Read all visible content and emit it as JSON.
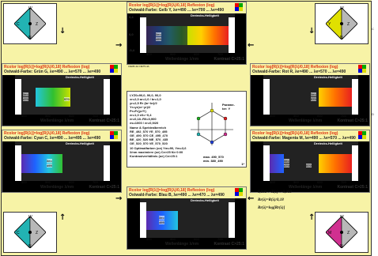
{
  "panels": {
    "top_center": {
      "title": "Rcolor log[R(λ)]=log[R(λ)/0,18] Reflexion (log)",
      "subtitle": "Ostwald-Farbe: Gelb Y, λe=490 ... λe=700 ... λe=490",
      "header": "Dreiecks-Helligkeit",
      "header2": "1*",
      "lambda_label": "λe=",
      "lambda_value": "495",
      "y_top": "0,4",
      "y_mid": "0,0",
      "y_bot": "-0,4",
      "xticks": [
        "400",
        "500",
        "600",
        "700"
      ],
      "wavelength": "Wellenlänge λ/nm",
      "kontrast": "Kontrast C>25:1",
      "footer": "CIE05-4A CIE75-4A"
    },
    "mid_left": {
      "title": "Rcolor log[R(λ)]=log[R(λ)/0,18] Reflexion (log)",
      "subtitle": "Ostwald-Farbe: Grün G, λe=490 ... λe=570 ... λe=490",
      "header": "Dreiecks-Helligkeit",
      "header2": "1*",
      "lambda_label": "λe=",
      "lambda_left": "470",
      "lambda_right": "570",
      "xticks": [
        "400",
        "500",
        "600",
        "700"
      ],
      "wavelength": "Wellenlänge λ/nm",
      "kontrast": "Kontrast C>25:1",
      "footer": "CIE05-4A CIE75-4A"
    },
    "mid_right": {
      "title": "Rcolor log[R(λ)]=log[R(λ)/0,18] Reflexion (log)",
      "subtitle": "Ostwald-Farbe: Rot R, λe=490 ... λe=570 ... λe=490",
      "header": "Dreiecks-Helligkeit",
      "header2": "1*",
      "lambda_label": "λe=",
      "lambda_value": "570",
      "xticks": [
        "400",
        "500",
        "600",
        "700"
      ],
      "wavelength": "Wellenlänge λ/nm",
      "kontrast": "Kontrast C>25:1",
      "footer": "CIE05-4A CIE75-4A"
    },
    "low_left": {
      "title": "Rcolor log[R(λ)]=log[R(λ)/0,18] Reflexion (log)",
      "subtitle": "Ostwald-Farbe: Cyan C, λe=490 ... λe=495 ... λe=490",
      "header": "Dreiecks-Helligkeit",
      "header2": "1*",
      "lambda_label": "λe=",
      "lambda_value": "495",
      "xticks": [
        "400",
        "500",
        "600",
        "700"
      ],
      "wavelength": "Wellenlänge λ/nm",
      "kontrast": "Kontrast C>25:1",
      "footer": "CIE05-4A CIE75-4A"
    },
    "low_right": {
      "title": "Rcolor log[R(λ)]=log[R(λ)/0,18] Reflexion (log)",
      "subtitle": "Ostwald-Farbe: Magenta M, λe=490 ... λe=570 ... λe=490",
      "header": "Dreiecks-Helligkeit",
      "header2": "1*",
      "lambda_label": "λe=",
      "lambda_left": "470",
      "lambda_right": "570",
      "xticks": [
        "400",
        "500",
        "600",
        "700"
      ],
      "wavelength": "Wellenlänge λ/nm",
      "kontrast": "Kontrast C>25:1",
      "footer": "CIE05-4A CIE75-4A"
    },
    "bottom_center": {
      "title": "Rcolor log[R(λ)]=log[R(λ)/0,18] Reflexion (log)",
      "subtitle": "Ostwald-Farbe: Blau B, λe=490 ... λe=470 ... λe=490",
      "header": "Dreiecks-Helligkeit",
      "header2": "1*",
      "lambda_label": "λe=",
      "lambda_value": "495",
      "xticks": [
        "400",
        "500",
        "600",
        "700"
      ],
      "wavelength": "Wellenlänge λ/nm",
      "kontrast": "Kontrast C>25:1",
      "footer": "CIE05-4A CIE75-4A"
    }
  },
  "center": {
    "lines": [
      "LYZ0=90,0, 90,0, 90,0",
      "xr=2,0 ar=1,0 / br=1,0",
      "yr=2,5 Rr (br−br)/2",
      "Yr=yr(xr−yr)/2",
      "Pr=Fr(yr/Y)",
      "er=1,0 e0=−0,4",
      "er=0,18..R0=0,900",
      "es=1000 / er=0,9/20",
      "Name & Spektralbereich",
      "RE_492_570 YE_570_495",
      "GE_490_570 CE_495_470",
      "BE_420_520 ME_570_435",
      "OE_520_570 VE_570_520",
      "10 Optimalfarben (oe) Ym=90, Ym=3,6",
      "λ/nm maximiere (oe) Ce>25 für 0:00",
      "Kontrastverhältnis (oe) Ce>25:1"
    ],
    "param_label": "Parame-\nter: Y",
    "code_a": "max. 490_570",
    "code_b": "min. 380_490",
    "corner": "1*"
  },
  "info": {
    "line1": "0,036<=R(λ)<=0,900",
    "line2": "Rr(λ)=R(λ)/0,18",
    "line3": "Rr(λ)=log[Rr(λ)]"
  },
  "diamonds": {
    "tl": {
      "top": "W",
      "left": "C",
      "mid": "Z",
      "bot": "N",
      "color": "#22b3b3"
    },
    "tr": {
      "top": "W",
      "left": "Y",
      "mid": "Z",
      "bot": "N",
      "color": "#e0e000"
    },
    "bl": {
      "top": "W",
      "left": "C",
      "mid": "Z",
      "bot": "N",
      "color": "#22b3b3"
    },
    "br": {
      "top": "W",
      "left": "M",
      "mid": "Z",
      "bot": "N",
      "color": "#d03090"
    }
  },
  "right_margin": [
    "C",
    "D"
  ],
  "colors": {
    "background": "#f7f3a6",
    "title_red": "#d31"
  }
}
